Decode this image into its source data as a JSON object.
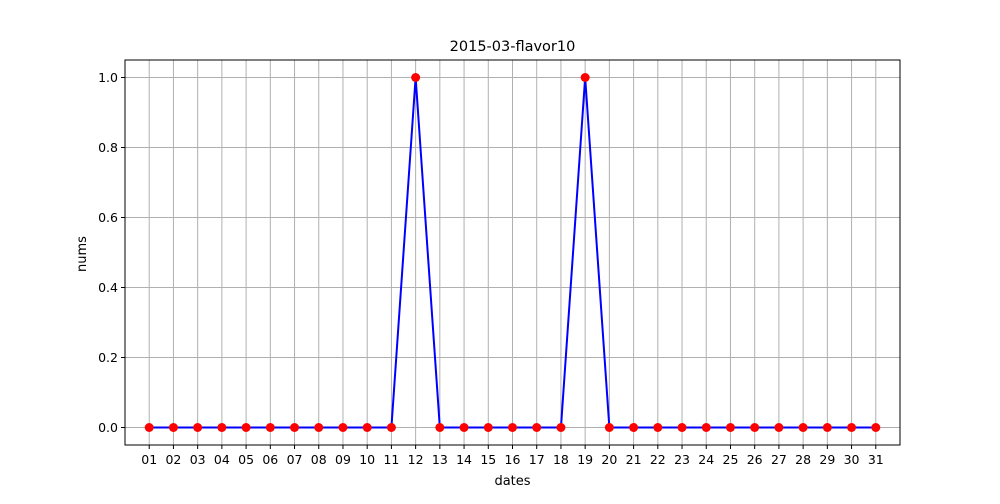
{
  "chart_data": {
    "type": "line",
    "title": "2015-03-flavor10",
    "xlabel": "dates",
    "ylabel": "nums",
    "categories": [
      "01",
      "02",
      "03",
      "04",
      "05",
      "06",
      "07",
      "08",
      "09",
      "10",
      "11",
      "12",
      "13",
      "14",
      "15",
      "16",
      "17",
      "18",
      "19",
      "20",
      "21",
      "22",
      "23",
      "24",
      "25",
      "26",
      "27",
      "28",
      "29",
      "30",
      "31"
    ],
    "series": [
      {
        "values": [
          0,
          0,
          0,
          0,
          0,
          0,
          0,
          0,
          0,
          0,
          0,
          1,
          0,
          0,
          0,
          0,
          0,
          0,
          1,
          0,
          0,
          0,
          0,
          0,
          0,
          0,
          0,
          0,
          0,
          0,
          0
        ],
        "line_color": "#0000ff",
        "marker_color": "#ff0000",
        "marker": "circle"
      }
    ],
    "ylim": [
      -0.05,
      1.05
    ],
    "yticks": [
      "0.0",
      "0.2",
      "0.4",
      "0.6",
      "0.8",
      "1.0"
    ],
    "grid": true,
    "grid_color": "#b0b0b0"
  }
}
